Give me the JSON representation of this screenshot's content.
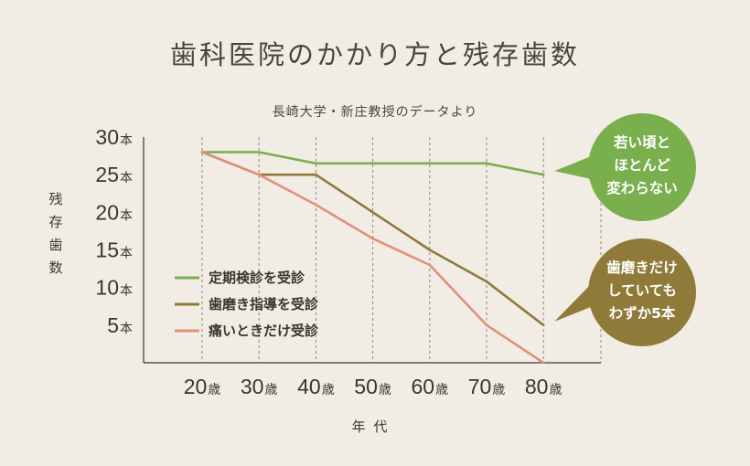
{
  "title": "歯科医院のかかり方と残存歯数",
  "chart_data": {
    "type": "line",
    "subtitle": "長崎大学・新庄教授のデータより",
    "x": [
      "20歳",
      "30歳",
      "40歳",
      "50歳",
      "60歳",
      "70歳",
      "80歳"
    ],
    "x_ticks": [
      {
        "num": "20",
        "unit": "歳"
      },
      {
        "num": "30",
        "unit": "歳"
      },
      {
        "num": "40",
        "unit": "歳"
      },
      {
        "num": "50",
        "unit": "歳"
      },
      {
        "num": "60",
        "unit": "歳"
      },
      {
        "num": "70",
        "unit": "歳"
      },
      {
        "num": "80",
        "unit": "歳"
      }
    ],
    "y_ticks": [
      {
        "value": 30,
        "num": "30",
        "unit": "本"
      },
      {
        "value": 25,
        "num": "25",
        "unit": "本"
      },
      {
        "value": 20,
        "num": "20",
        "unit": "本"
      },
      {
        "value": 15,
        "num": "15",
        "unit": "本"
      },
      {
        "value": 10,
        "num": "10",
        "unit": "本"
      },
      {
        "value": 5,
        "num": "5",
        "unit": "本"
      }
    ],
    "xlabel": "年 代",
    "ylabel": [
      "残",
      "存",
      "歯",
      "数"
    ],
    "ylim": [
      0,
      30
    ],
    "grid": "vertical dashed",
    "legend_position": "lower-left",
    "series": [
      {
        "name": "定期検診を受診",
        "color": "#7aaf4e",
        "values": [
          28,
          28,
          26.5,
          26.5,
          26.5,
          26.5,
          25
        ]
      },
      {
        "name": "歯磨き指導を受診",
        "color": "#8f7a3a",
        "values": [
          28,
          25,
          25,
          20,
          15,
          10.8,
          5
        ]
      },
      {
        "name": "痛いときだけ受診",
        "color": "#e0907a",
        "values": [
          28,
          25,
          21,
          16.5,
          13,
          5,
          0
        ]
      }
    ],
    "annotations": [
      {
        "lines": [
          "若い頃と",
          "ほとんど",
          "変わらない"
        ],
        "color": "#7aaf4e",
        "series": 0
      },
      {
        "lines": [
          "歯磨きだけ",
          "していても",
          "わずか5本"
        ],
        "color": "#8f7a3a",
        "series": 1
      }
    ]
  }
}
